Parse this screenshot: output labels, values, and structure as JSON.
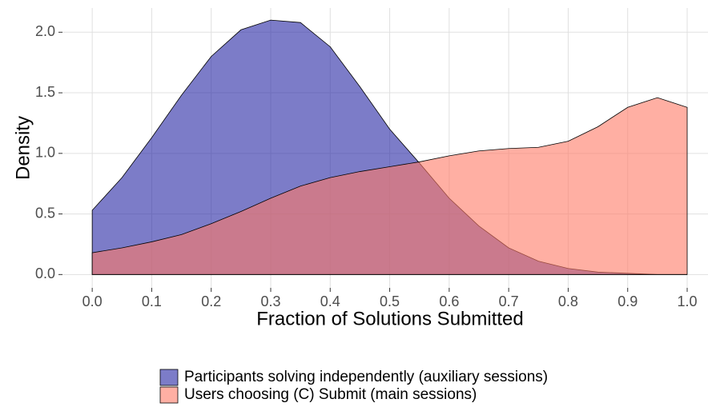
{
  "chart_data": {
    "type": "density",
    "x_label": "Fraction of Solutions Submitted",
    "y_label": "Density",
    "x": [
      0.0,
      0.05,
      0.1,
      0.15,
      0.2,
      0.25,
      0.3,
      0.35,
      0.4,
      0.45,
      0.5,
      0.55,
      0.6,
      0.65,
      0.7,
      0.75,
      0.8,
      0.85,
      0.9,
      0.95,
      1.0
    ],
    "series": [
      {
        "name": "Participants solving independently (auxiliary sessions)",
        "color": "#2525a3",
        "values": [
          0.53,
          0.8,
          1.13,
          1.48,
          1.8,
          2.02,
          2.1,
          2.08,
          1.88,
          1.55,
          1.2,
          0.92,
          0.63,
          0.4,
          0.22,
          0.11,
          0.05,
          0.02,
          0.01,
          0.0,
          0.0
        ]
      },
      {
        "name": "Users choosing (C) Submit (main sessions)",
        "color": "#ff7a66",
        "values": [
          0.18,
          0.22,
          0.27,
          0.33,
          0.42,
          0.52,
          0.63,
          0.73,
          0.8,
          0.85,
          0.89,
          0.93,
          0.98,
          1.02,
          1.04,
          1.05,
          1.1,
          1.22,
          1.38,
          1.46,
          1.38
        ]
      }
    ],
    "opacity": 0.6,
    "xlim": [
      -0.05,
      1.035
    ],
    "ylim": [
      -0.11,
      2.2
    ],
    "xticks": [
      {
        "value": 0,
        "label": "0.0"
      },
      0.1,
      0.2,
      0.3,
      0.4,
      0.5,
      0.6,
      0.7,
      0.8,
      0.9,
      {
        "value": 1,
        "label": "1.0"
      }
    ],
    "yticks": [
      {
        "value": 0,
        "label": "0.0"
      },
      0.5,
      {
        "value": 1,
        "label": "1.0"
      },
      1.5,
      {
        "value": 2,
        "label": "2.0"
      }
    ],
    "grid": true,
    "legend": "bottom"
  }
}
